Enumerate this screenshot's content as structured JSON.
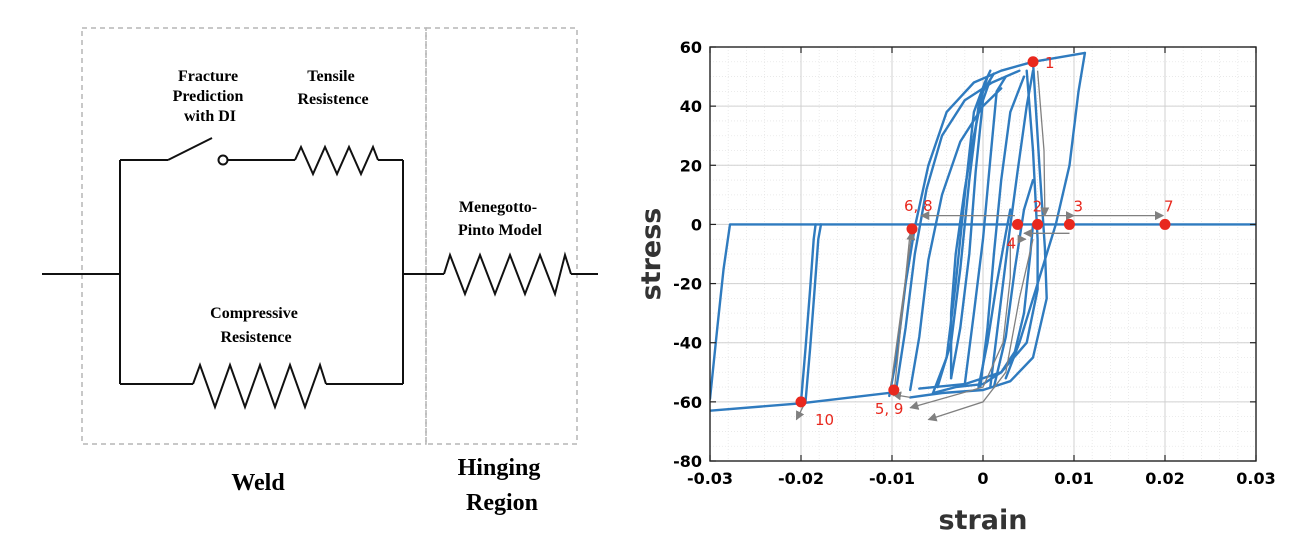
{
  "circuit": {
    "weld_label": "Weld",
    "hinge_label_line1": "Hinging",
    "hinge_label_line2": "Region",
    "fracture_line1": "Fracture",
    "fracture_line2": "Prediction",
    "fracture_line3": "with DI",
    "tensile_line1": "Tensile",
    "tensile_line2": "Resistence",
    "compressive_line1": "Compressive",
    "compressive_line2": "Resistence",
    "menegotto_line1": "Menegotto-",
    "menegotto_line2": "Pinto Model"
  },
  "chart_data": {
    "type": "line",
    "xlabel": "strain",
    "ylabel": "stress",
    "xlim": [
      -0.03,
      0.03
    ],
    "ylim": [
      -80,
      60
    ],
    "xticks": [
      -0.03,
      -0.02,
      -0.01,
      0,
      0.01,
      0.02,
      0.03
    ],
    "xtick_labels": [
      "-0.03",
      "-0.02",
      "-0.01",
      "0",
      "0.01",
      "0.02",
      "0.03"
    ],
    "yticks": [
      -80,
      -60,
      -40,
      -20,
      0,
      20,
      40,
      60
    ],
    "ytick_labels": [
      "-80",
      "-60",
      "-40",
      "-20",
      "0",
      "20",
      "40",
      "60"
    ],
    "grid": true,
    "line_color": "#2f7bbf",
    "point_color": "#e8281e",
    "arrow_color": "#808080",
    "marked_points": [
      {
        "label": "1",
        "x": 0.0055,
        "y": 55
      },
      {
        "label": "2",
        "x": 0.006,
        "y": 0
      },
      {
        "label": "3",
        "x": 0.0095,
        "y": 0
      },
      {
        "label": "4",
        "x": 0.0038,
        "y": 0
      },
      {
        "label": "5, 9",
        "x": -0.0098,
        "y": -56
      },
      {
        "label": "6, 8",
        "x": -0.0078,
        "y": -1.5
      },
      {
        "label": "7",
        "x": 0.02,
        "y": 0
      },
      {
        "label": "10",
        "x": -0.02,
        "y": -60
      }
    ],
    "series": [
      {
        "segments": [
          [
            [
              -0.03,
              -63
            ],
            [
              -0.02,
              -60.5
            ],
            [
              -0.0098,
              -56.8
            ]
          ],
          [
            [
              -0.03,
              -59
            ],
            [
              -0.0292,
              -35
            ],
            [
              -0.0285,
              -15
            ],
            [
              -0.0278,
              0
            ],
            [
              0.03,
              0
            ]
          ],
          [
            [
              -0.02,
              -60
            ],
            [
              -0.0195,
              -42
            ],
            [
              -0.019,
              -22
            ],
            [
              -0.0186,
              -5
            ],
            [
              -0.0184,
              0
            ]
          ],
          [
            [
              -0.0195,
              -60
            ],
            [
              -0.019,
              -42
            ],
            [
              -0.0185,
              -22
            ],
            [
              -0.0181,
              -5
            ],
            [
              -0.0178,
              0
            ]
          ],
          [
            [
              -0.0103,
              -58
            ],
            [
              -0.0095,
              -45
            ],
            [
              -0.0085,
              -20
            ],
            [
              -0.0075,
              -1
            ],
            [
              -0.006,
              20
            ],
            [
              -0.004,
              38
            ],
            [
              -0.001,
              48
            ],
            [
              0.002,
              52
            ],
            [
              0.0055,
              55
            ]
          ],
          [
            [
              -0.0095,
              -55
            ],
            [
              -0.0085,
              -35
            ],
            [
              -0.0075,
              -10
            ],
            [
              -0.0062,
              12
            ],
            [
              -0.0045,
              30
            ],
            [
              -0.002,
              42
            ],
            [
              0.001,
              48
            ],
            [
              0.004,
              52
            ]
          ],
          [
            [
              -0.008,
              -56
            ],
            [
              -0.007,
              -38
            ],
            [
              -0.006,
              -12
            ],
            [
              -0.0045,
              10
            ],
            [
              -0.0025,
              28
            ],
            [
              0,
              40
            ],
            [
              0.002,
              46
            ]
          ],
          [
            [
              0.0055,
              55
            ],
            [
              0.0062,
              20
            ],
            [
              0.0068,
              -8
            ],
            [
              0.007,
              -25
            ],
            [
              0.0055,
              -45
            ],
            [
              0.003,
              -53
            ],
            [
              0,
              -56
            ],
            [
              -0.0045,
              -57
            ],
            [
              -0.008,
              -58.5
            ]
          ],
          [
            [
              0.0048,
              52
            ],
            [
              0.0055,
              25
            ],
            [
              0.006,
              -5
            ],
            [
              0.006,
              -22
            ],
            [
              0.0048,
              -40
            ],
            [
              0.002,
              -50
            ],
            [
              -0.002,
              -54
            ],
            [
              -0.007,
              -55.5
            ]
          ],
          [
            [
              -0.0055,
              -57
            ],
            [
              -0.004,
              -45
            ],
            [
              -0.003,
              -20
            ],
            [
              -0.002,
              10
            ],
            [
              -0.001,
              38
            ],
            [
              0.0002,
              48
            ],
            [
              0.0008,
              52
            ]
          ],
          [
            [
              -0.005,
              -55
            ],
            [
              -0.0035,
              -40
            ],
            [
              -0.0025,
              -15
            ],
            [
              -0.0015,
              15
            ],
            [
              -0.0005,
              40
            ],
            [
              0.0005,
              50
            ]
          ],
          [
            [
              -0.0035,
              -52
            ],
            [
              -0.0025,
              -35
            ],
            [
              -0.0015,
              -10
            ],
            [
              -0.0008,
              18
            ],
            [
              0,
              42
            ],
            [
              0.0008,
              49
            ]
          ],
          [
            [
              -0.002,
              -54
            ],
            [
              -0.001,
              -30
            ],
            [
              0,
              -5
            ],
            [
              0.0008,
              22
            ],
            [
              0.0015,
              45
            ],
            [
              0.0025,
              50
            ]
          ],
          [
            [
              -0.0003,
              -55
            ],
            [
              0.0005,
              -35
            ],
            [
              0.0012,
              -10
            ],
            [
              0.002,
              15
            ],
            [
              0.003,
              38
            ],
            [
              0.0045,
              50
            ]
          ],
          [
            [
              0.0008,
              -55
            ],
            [
              0.0018,
              -30
            ],
            [
              0.0028,
              -5
            ],
            [
              0.0038,
              18
            ],
            [
              0.0048,
              40
            ],
            [
              0.0055,
              52
            ]
          ],
          [
            [
              0.0012,
              -55
            ],
            [
              0.0025,
              -38
            ],
            [
              0.0035,
              -15
            ],
            [
              0.0045,
              5
            ],
            [
              0.0055,
              15
            ]
          ],
          [
            [
              -0.0005,
              -55
            ],
            [
              0.0005,
              -40
            ],
            [
              0.0015,
              -20
            ],
            [
              0.0025,
              -3
            ],
            [
              0.003,
              5
            ]
          ],
          [
            [
              -0.0035,
              -52
            ],
            [
              -0.0035,
              -30
            ],
            [
              -0.003,
              -10
            ],
            [
              -0.002,
              12
            ],
            [
              -0.001,
              30
            ],
            [
              0,
              45
            ],
            [
              0.0012,
              51
            ]
          ],
          [
            [
              0.0025,
              -52
            ],
            [
              0.004,
              -40
            ],
            [
              0.006,
              -20
            ],
            [
              0.008,
              0
            ],
            [
              0.0095,
              20
            ],
            [
              0.0105,
              45
            ],
            [
              0.0112,
              58
            ]
          ],
          [
            [
              0.0112,
              58
            ],
            [
              0.0055,
              55
            ]
          ],
          [
            [
              -0.0055,
              -57
            ],
            [
              -0.003,
              -55
            ],
            [
              0,
              -54
            ],
            [
              0.002,
              -50
            ],
            [
              0.0035,
              -43
            ],
            [
              0.0045,
              -30
            ],
            [
              0.0052,
              -10
            ],
            [
              0.0055,
              0
            ]
          ]
        ]
      }
    ],
    "arrows": [
      [
        [
          0.006,
          52
        ],
        [
          0.0067,
          25
        ],
        [
          0.0068,
          3
        ]
      ],
      [
        [
          0.0095,
          -3
        ],
        [
          0.0045,
          -3
        ]
      ],
      [
        [
          0.006,
          3
        ],
        [
          0.01,
          3
        ]
      ],
      [
        [
          0.0095,
          3
        ],
        [
          0.0198,
          3
        ]
      ],
      [
        [
          0.0035,
          3
        ],
        [
          -0.0068,
          3
        ]
      ],
      [
        [
          0.0055,
          -5
        ],
        [
          0.004,
          -25
        ],
        [
          0.0025,
          -50
        ],
        [
          0,
          -60
        ],
        [
          -0.006,
          -66
        ]
      ],
      [
        [
          -0.008,
          -2.5
        ],
        [
          -0.0098,
          -58
        ]
      ],
      [
        [
          -0.0102,
          -56.5
        ],
        [
          -0.0078,
          -2.5
        ]
      ],
      [
        [
          0.0038,
          -5
        ],
        [
          0.0047,
          -5
        ]
      ],
      [
        [
          0.003,
          -5.5
        ],
        [
          0.003,
          -18
        ],
        [
          0.0022,
          -40
        ],
        [
          0,
          -55
        ],
        [
          -0.008,
          -62
        ]
      ],
      [
        [
          -0.008,
          -58.5
        ],
        [
          -0.0099,
          -57.5
        ]
      ],
      [
        [
          -0.0195,
          -60
        ],
        [
          -0.0205,
          -66
        ]
      ]
    ]
  }
}
